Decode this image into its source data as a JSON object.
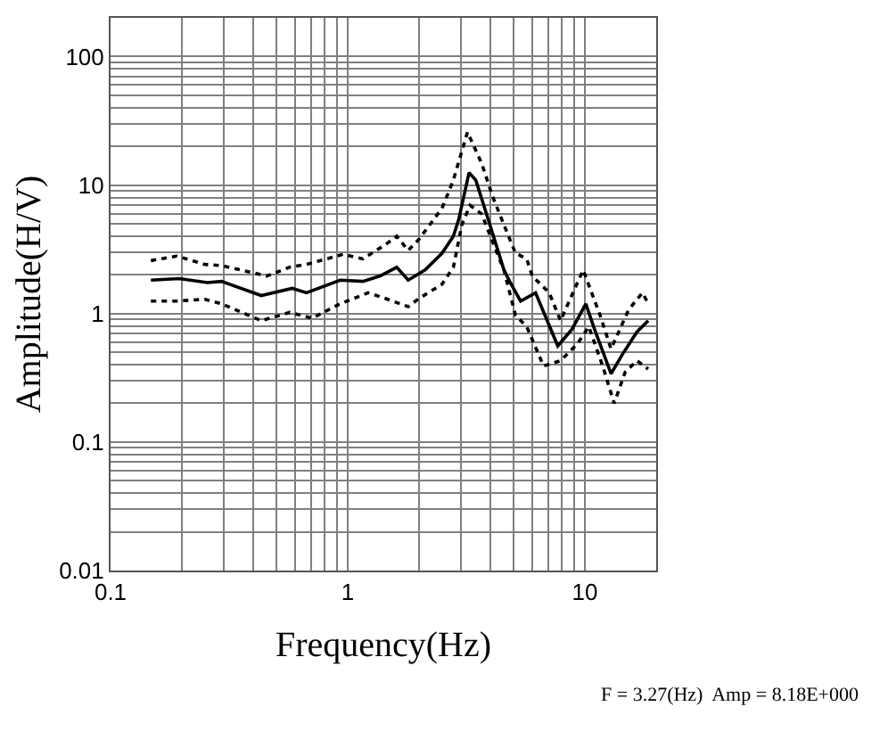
{
  "chart_data": {
    "type": "line",
    "xlabel": "Frequency(Hz)",
    "ylabel": "Amplitude(H/V)",
    "log": "xy",
    "grid": true,
    "xlim": [
      0.1,
      20
    ],
    "xticks": [
      0.1,
      1,
      10
    ],
    "ylim": [
      0.01,
      200
    ],
    "yticks": [
      0.01,
      0.1,
      1,
      10,
      100
    ],
    "annotations": [
      "F = 3.27(Hz)  Amp = 8.18E+000"
    ],
    "series": [
      {
        "color": "#000000",
        "line_style": "solid",
        "x": [
          0.148,
          0.195,
          0.256,
          0.294,
          0.432,
          0.584,
          0.67,
          0.93,
          1.16,
          1.37,
          1.61,
          1.8,
          2.12,
          2.5,
          2.79,
          2.94,
          3.25,
          3.47,
          3.98,
          4.56,
          4.82,
          5.36,
          6.2,
          7.69,
          8.81,
          10.1,
          11.0,
          12.9,
          14.4,
          16.6,
          18.5
        ],
        "values": [
          1.82,
          1.87,
          1.74,
          1.78,
          1.38,
          1.57,
          1.45,
          1.82,
          1.78,
          1.96,
          2.29,
          1.82,
          2.18,
          2.95,
          3.99,
          5.4,
          12.5,
          10.9,
          4.9,
          2.18,
          1.78,
          1.25,
          1.45,
          0.56,
          0.75,
          1.19,
          0.75,
          0.34,
          0.48,
          0.72,
          0.88
        ]
      },
      {
        "color": "#000000",
        "line_style": "dotted",
        "x": [
          0.148,
          0.19,
          0.25,
          0.294,
          0.456,
          0.569,
          0.67,
          0.957,
          1.16,
          1.44,
          1.61,
          1.8,
          2.0,
          2.5,
          2.79,
          3.2,
          3.67,
          4.09,
          4.56,
          5.1,
          5.69,
          6.0,
          7.08,
          7.9,
          9.84,
          11.6,
          12.9,
          15.3,
          17.5,
          18.5
        ],
        "values": [
          2.58,
          2.8,
          2.41,
          2.36,
          1.96,
          2.29,
          2.41,
          2.89,
          2.66,
          3.43,
          3.99,
          3.1,
          3.79,
          6.6,
          10.9,
          25.8,
          14.8,
          8.1,
          4.9,
          2.95,
          2.66,
          1.96,
          1.45,
          0.88,
          2.18,
          0.97,
          0.53,
          1.07,
          1.45,
          1.2
        ]
      },
      {
        "color": "#000000",
        "line_style": "dotted",
        "x": [
          0.148,
          0.19,
          0.25,
          0.294,
          0.432,
          0.569,
          0.708,
          0.93,
          1.22,
          1.44,
          1.8,
          2.0,
          2.5,
          2.79,
          3.03,
          3.28,
          3.67,
          4.09,
          4.56,
          5.1,
          5.69,
          6.7,
          7.9,
          9.3,
          10.4,
          11.9,
          13.3,
          14.8,
          16.6,
          18.5
        ],
        "values": [
          1.25,
          1.25,
          1.29,
          1.19,
          0.88,
          1.02,
          0.92,
          1.19,
          1.45,
          1.31,
          1.13,
          1.31,
          1.69,
          2.29,
          4.9,
          6.95,
          5.97,
          3.6,
          2.18,
          0.97,
          0.79,
          0.39,
          0.43,
          0.58,
          0.79,
          0.39,
          0.2,
          0.35,
          0.43,
          0.37
        ]
      }
    ]
  }
}
